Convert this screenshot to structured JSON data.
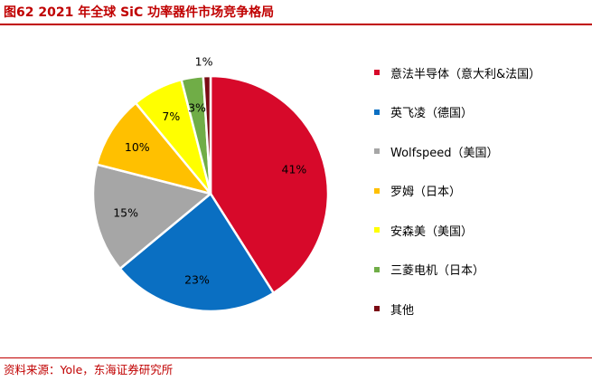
{
  "title": "图62  2021 年全球 SiC 功率器件市场竞争格局",
  "source": "资料来源：Yole，东海证券研究所",
  "chart_data": {
    "type": "pie",
    "title": "",
    "legend_position": "right",
    "slices": [
      {
        "name": "意法半导体（意大利&法国）",
        "value": 41,
        "label": "41%",
        "color": "#d7092a"
      },
      {
        "name": "英飞凌（德国）",
        "value": 23,
        "label": "23%",
        "color": "#0a6fc2"
      },
      {
        "name": "Wolfspeed（美国）",
        "value": 15,
        "label": "15%",
        "color": "#a6a6a6"
      },
      {
        "name": "罗姆（日本）",
        "value": 10,
        "label": "10%",
        "color": "#ffc000"
      },
      {
        "name": "安森美（美国）",
        "value": 7,
        "label": "7%",
        "color": "#ffff00"
      },
      {
        "name": "三菱电机（日本）",
        "value": 3,
        "label": "3%",
        "color": "#70ad47"
      },
      {
        "name": "其他",
        "value": 1,
        "label": "1%",
        "color": "#7b0a14"
      }
    ]
  }
}
